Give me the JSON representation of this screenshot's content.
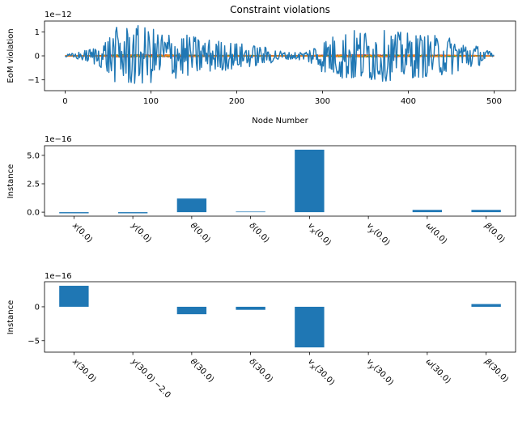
{
  "chart_data": [
    {
      "type": "line",
      "title": "Constraint violations",
      "xlabel": "Node Number",
      "ylabel": "EoM violation",
      "offset_text": "1e−12",
      "xlim": [
        -24,
        525
      ],
      "ylim": [
        -1.45,
        1.45
      ],
      "xticks": [
        0,
        100,
        200,
        300,
        400,
        500
      ],
      "yticks": [
        -1,
        0,
        1
      ],
      "ytick_labels": [
        "−1",
        "0",
        "1"
      ],
      "grid": false,
      "series_colors": [
        "#1f77b4",
        "#ff7f0e",
        "#2ca02c",
        "#d62728",
        "#9467bd",
        "#8c564b",
        "#e377c2",
        "#7f7f7f"
      ],
      "envelope": [
        {
          "x": 0,
          "amp": 0.05
        },
        {
          "x": 20,
          "amp": 0.2
        },
        {
          "x": 40,
          "amp": 0.45
        },
        {
          "x": 60,
          "amp": 1.2
        },
        {
          "x": 80,
          "amp": 1.3
        },
        {
          "x": 110,
          "amp": 1.1
        },
        {
          "x": 140,
          "amp": 0.9
        },
        {
          "x": 170,
          "amp": 0.7
        },
        {
          "x": 200,
          "amp": 0.55
        },
        {
          "x": 230,
          "amp": 0.4
        },
        {
          "x": 260,
          "amp": 0.15
        },
        {
          "x": 280,
          "amp": 0.2
        },
        {
          "x": 300,
          "amp": 0.7
        },
        {
          "x": 330,
          "amp": 1.1
        },
        {
          "x": 360,
          "amp": 1.1
        },
        {
          "x": 390,
          "amp": 1.0
        },
        {
          "x": 420,
          "amp": 0.9
        },
        {
          "x": 450,
          "amp": 0.8
        },
        {
          "x": 480,
          "amp": 0.45
        },
        {
          "x": 500,
          "amp": 0.1
        }
      ]
    },
    {
      "type": "bar",
      "ylabel": "Instance",
      "offset_text": "1e−16",
      "categories": [
        "x(0.0)",
        "y(0.0)",
        "θ(0.0)",
        "δ(0.0)",
        "vx(0.0)",
        "vy(0.0)",
        "ω(0.0)",
        "β(0.0)"
      ],
      "category_labels": [
        {
          "base": "x",
          "sub": "",
          "arg": "(0.0)"
        },
        {
          "base": "y",
          "sub": "",
          "arg": "(0.0)"
        },
        {
          "base": "θ",
          "sub": "",
          "arg": "(0.0)"
        },
        {
          "base": "δ",
          "sub": "",
          "arg": "(0.0)"
        },
        {
          "base": "v",
          "sub": "x",
          "arg": "(0.0)"
        },
        {
          "base": "v",
          "sub": "y",
          "arg": "(0.0)"
        },
        {
          "base": "ω",
          "sub": "",
          "arg": "(0.0)"
        },
        {
          "base": "β",
          "sub": "",
          "arg": "(0.0)"
        }
      ],
      "values": [
        -0.1,
        -0.1,
        1.2,
        0.05,
        5.5,
        0.0,
        0.2,
        0.2
      ],
      "ylim": [
        -0.35,
        5.85
      ],
      "yticks": [
        0.0,
        2.5,
        5.0
      ],
      "ytick_labels": [
        "0.0",
        "2.5",
        "5.0"
      ],
      "color": "#1f77b4",
      "grid": false
    },
    {
      "type": "bar",
      "ylabel": "Instance",
      "offset_text": "1e−16",
      "categories": [
        "x(30.0)",
        "y(30.0) −2.0",
        "θ(30.0)",
        "δ(30.0)",
        "vx(30.0)",
        "vy(30.0)",
        "ω(30.0)",
        "β(30.0)"
      ],
      "category_labels": [
        {
          "base": "x",
          "sub": "",
          "arg": "(30.0)"
        },
        {
          "base": "y",
          "sub": "",
          "arg": "(30.0) −2.0"
        },
        {
          "base": "θ",
          "sub": "",
          "arg": "(30.0)"
        },
        {
          "base": "δ",
          "sub": "",
          "arg": "(30.0)"
        },
        {
          "base": "v",
          "sub": "x",
          "arg": "(30.0)"
        },
        {
          "base": "v",
          "sub": "y",
          "arg": "(30.0)"
        },
        {
          "base": "ω",
          "sub": "",
          "arg": "(30.0)"
        },
        {
          "base": "β",
          "sub": "",
          "arg": "(30.0)"
        }
      ],
      "values": [
        3.1,
        0.0,
        -1.1,
        -0.45,
        -6.0,
        0.0,
        0.0,
        0.4
      ],
      "ylim": [
        -6.7,
        3.7
      ],
      "yticks": [
        -5,
        0
      ],
      "ytick_labels": [
        "−5",
        "0"
      ],
      "color": "#1f77b4",
      "grid": false
    }
  ]
}
